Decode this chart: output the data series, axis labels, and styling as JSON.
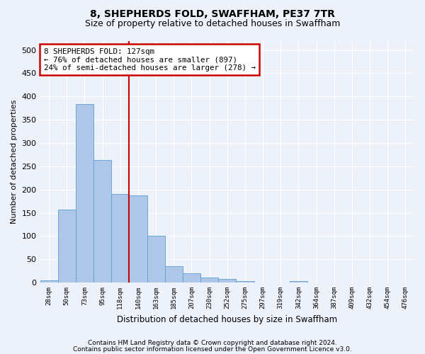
{
  "title": "8, SHEPHERDS FOLD, SWAFFHAM, PE37 7TR",
  "subtitle": "Size of property relative to detached houses in Swaffham",
  "xlabel": "Distribution of detached houses by size in Swaffham",
  "ylabel": "Number of detached properties",
  "bin_labels": [
    "28sqm",
    "50sqm",
    "73sqm",
    "95sqm",
    "118sqm",
    "140sqm",
    "163sqm",
    "185sqm",
    "207sqm",
    "230sqm",
    "252sqm",
    "275sqm",
    "297sqm",
    "319sqm",
    "342sqm",
    "364sqm",
    "387sqm",
    "409sqm",
    "432sqm",
    "454sqm",
    "476sqm"
  ],
  "bar_heights": [
    5,
    157,
    383,
    263,
    190,
    188,
    101,
    35,
    20,
    11,
    7,
    3,
    0,
    0,
    3,
    0,
    0,
    0,
    0,
    0,
    0
  ],
  "bar_color": "#aec6e8",
  "bar_edge_color": "#5a9fd4",
  "property_line_x": 4.5,
  "annotation_line1": "8 SHEPHERDS FOLD: 127sqm",
  "annotation_line2": "← 76% of detached houses are smaller (897)",
  "annotation_line3": "24% of semi-detached houses are larger (278) →",
  "annotation_box_color": "#ffffff",
  "annotation_box_edge": "#cc0000",
  "line_color": "#cc0000",
  "footer_line1": "Contains HM Land Registry data © Crown copyright and database right 2024.",
  "footer_line2": "Contains public sector information licensed under the Open Government Licence v3.0.",
  "bg_color": "#edf2fa",
  "plot_bg_color": "#edf2fa",
  "grid_color": "#ffffff",
  "ylim": [
    0,
    520
  ],
  "yticks": [
    0,
    50,
    100,
    150,
    200,
    250,
    300,
    350,
    400,
    450,
    500
  ]
}
